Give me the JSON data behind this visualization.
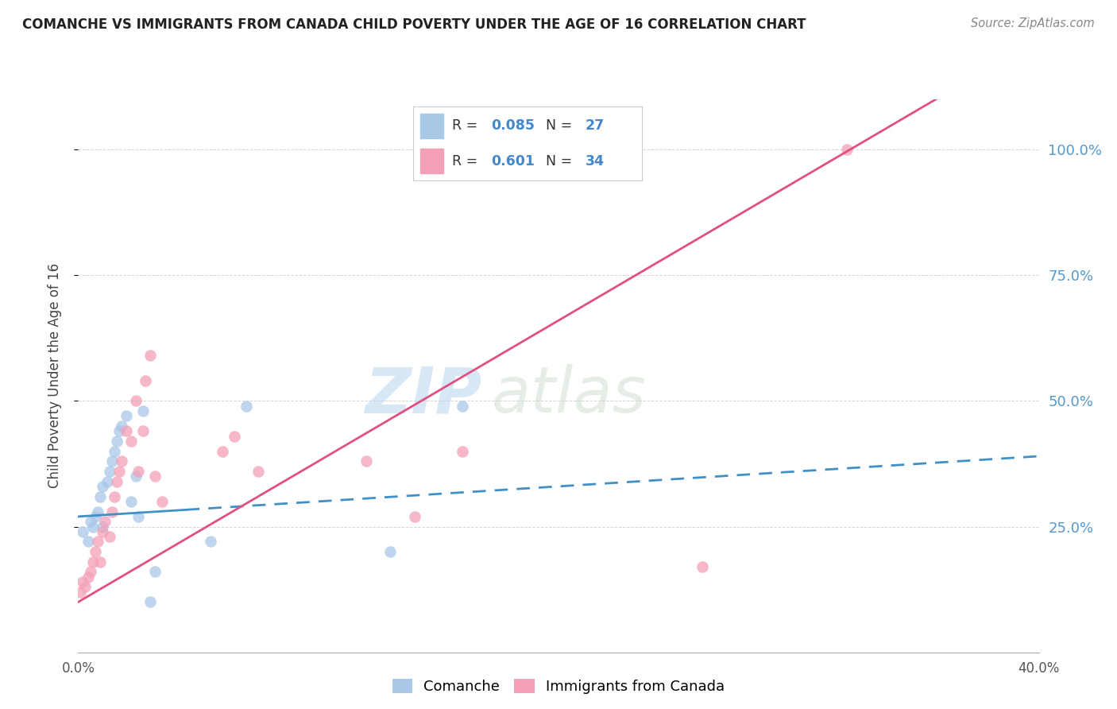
{
  "title": "COMANCHE VS IMMIGRANTS FROM CANADA CHILD POVERTY UNDER THE AGE OF 16 CORRELATION CHART",
  "source": "Source: ZipAtlas.com",
  "ylabel": "Child Poverty Under the Age of 16",
  "right_yticks": [
    "100.0%",
    "75.0%",
    "50.0%",
    "25.0%"
  ],
  "right_ytick_vals": [
    1.0,
    0.75,
    0.5,
    0.25
  ],
  "legend_label1": "Comanche",
  "legend_label2": "Immigrants from Canada",
  "R1": 0.085,
  "N1": 27,
  "R2": 0.601,
  "N2": 34,
  "color_blue": "#a8c8e8",
  "color_pink": "#f4a0b8",
  "color_blue_line": "#4090c8",
  "color_pink_line": "#e05080",
  "watermark_zip": "ZIP",
  "watermark_atlas": "atlas",
  "blue_scatter_x": [
    0.002,
    0.004,
    0.005,
    0.006,
    0.007,
    0.008,
    0.009,
    0.01,
    0.01,
    0.012,
    0.013,
    0.014,
    0.015,
    0.016,
    0.017,
    0.018,
    0.02,
    0.022,
    0.024,
    0.025,
    0.027,
    0.03,
    0.032,
    0.055,
    0.07,
    0.13,
    0.16
  ],
  "blue_scatter_y": [
    0.24,
    0.22,
    0.26,
    0.25,
    0.27,
    0.28,
    0.31,
    0.33,
    0.25,
    0.34,
    0.36,
    0.38,
    0.4,
    0.42,
    0.44,
    0.45,
    0.47,
    0.3,
    0.35,
    0.27,
    0.48,
    0.1,
    0.16,
    0.22,
    0.49,
    0.2,
    0.49
  ],
  "pink_scatter_x": [
    0.001,
    0.002,
    0.003,
    0.004,
    0.005,
    0.006,
    0.007,
    0.008,
    0.009,
    0.01,
    0.011,
    0.013,
    0.014,
    0.015,
    0.016,
    0.017,
    0.018,
    0.02,
    0.022,
    0.024,
    0.025,
    0.027,
    0.028,
    0.03,
    0.032,
    0.035,
    0.06,
    0.065,
    0.075,
    0.12,
    0.14,
    0.16,
    0.26,
    0.32
  ],
  "pink_scatter_y": [
    0.12,
    0.14,
    0.13,
    0.15,
    0.16,
    0.18,
    0.2,
    0.22,
    0.18,
    0.24,
    0.26,
    0.23,
    0.28,
    0.31,
    0.34,
    0.36,
    0.38,
    0.44,
    0.42,
    0.5,
    0.36,
    0.44,
    0.54,
    0.59,
    0.35,
    0.3,
    0.4,
    0.43,
    0.36,
    0.38,
    0.27,
    0.4,
    0.17,
    1.0
  ],
  "xlim": [
    0.0,
    0.4
  ],
  "ylim": [
    0.0,
    1.1
  ],
  "blue_line_intercept": 0.27,
  "blue_line_slope": 0.3,
  "pink_line_intercept": 0.1,
  "pink_line_slope": 2.8,
  "blue_solid_cutoff": 0.045
}
